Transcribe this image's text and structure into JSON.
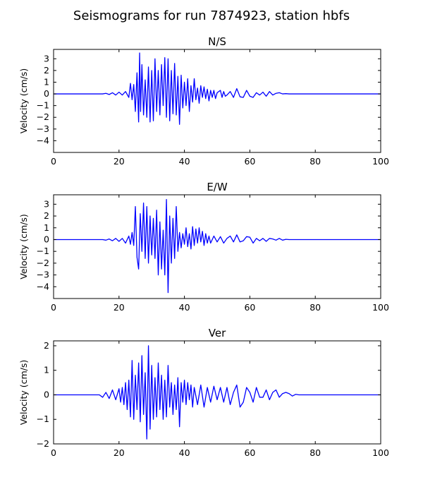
{
  "figure_title": "Seismograms for run 7874923, station hbfs",
  "chart_data": [
    {
      "type": "line",
      "title": "N/S",
      "xlabel": "",
      "ylabel": "Velocity (cm/s)",
      "xlim": [
        0,
        100
      ],
      "ylim": [
        -5,
        3.8
      ],
      "xticks": [
        0,
        20,
        40,
        60,
        80,
        100
      ],
      "yticks": [
        -4,
        -3,
        -2,
        -1,
        0,
        1,
        2,
        3
      ],
      "line_color": "#0000ff",
      "series": [
        {
          "x": [
            0,
            15,
            16,
            17,
            18,
            19,
            20,
            21,
            22,
            23,
            23.5,
            24,
            24.5,
            25,
            25.5,
            26,
            26.3,
            26.6,
            27,
            27.5,
            28,
            28.5,
            29,
            29.5,
            30,
            30.5,
            31,
            31.5,
            32,
            32.5,
            33,
            33.5,
            34,
            34.5,
            35,
            35.5,
            36,
            36.5,
            37,
            37.5,
            38,
            38.5,
            39,
            39.5,
            40,
            40.5,
            41,
            41.5,
            42,
            42.5,
            43,
            43.5,
            44,
            44.5,
            45,
            45.5,
            46,
            46.5,
            47,
            47.5,
            48,
            48.5,
            49,
            49.5,
            50,
            51,
            51.5,
            52,
            52.5,
            53,
            54,
            55,
            56,
            57,
            58,
            59,
            60,
            61,
            62,
            63,
            64,
            65,
            66,
            67,
            68,
            69,
            70,
            71,
            72,
            80,
            90,
            100
          ],
          "values": [
            0,
            0,
            0.05,
            -0.05,
            0.1,
            -0.1,
            0.15,
            -0.1,
            0.2,
            -0.3,
            0.9,
            -0.5,
            0.8,
            -1.5,
            1.8,
            -2.4,
            3.5,
            -1.5,
            2.5,
            -1.8,
            1.2,
            -2.0,
            2.3,
            -2.4,
            2.0,
            -2.3,
            3.0,
            -1.5,
            2.0,
            -1.8,
            2.5,
            -1.0,
            3.1,
            -2.0,
            3.0,
            -2.3,
            2.0,
            -1.7,
            2.6,
            -1.8,
            1.5,
            -2.6,
            1.6,
            -1.2,
            1.0,
            -1.0,
            1.3,
            -1.5,
            0.7,
            -0.7,
            1.3,
            -0.5,
            0.5,
            -0.8,
            0.7,
            -0.3,
            0.6,
            -0.4,
            0.4,
            -0.6,
            0.3,
            -0.3,
            0.3,
            -0.4,
            0.1,
            0.3,
            -0.3,
            0.2,
            -0.2,
            -0.1,
            0.2,
            -0.3,
            0.45,
            -0.25,
            -0.3,
            0.3,
            -0.2,
            -0.3,
            0.1,
            -0.1,
            0.15,
            -0.2,
            0.2,
            -0.1,
            0.05,
            0.1,
            0,
            0.02,
            0,
            0,
            0,
            0
          ]
        }
      ]
    },
    {
      "type": "line",
      "title": "E/W",
      "xlabel": "",
      "ylabel": "Velocity (cm/s)",
      "xlim": [
        0,
        100
      ],
      "ylim": [
        -5,
        3.8
      ],
      "xticks": [
        0,
        20,
        40,
        60,
        80,
        100
      ],
      "yticks": [
        -4,
        -3,
        -2,
        -1,
        0,
        1,
        2,
        3
      ],
      "line_color": "#0000ff",
      "series": [
        {
          "x": [
            0,
            15,
            16,
            17,
            18,
            19,
            20,
            21,
            22,
            23,
            23.5,
            24,
            24.5,
            25,
            25.5,
            26,
            26.5,
            27,
            27.5,
            28,
            28.5,
            29,
            29.5,
            30,
            30.5,
            31,
            31.5,
            32,
            32.5,
            33,
            33.5,
            34,
            34.5,
            35,
            35.5,
            36,
            36.5,
            37,
            37.5,
            38,
            38.5,
            39,
            39.5,
            40,
            40.5,
            41,
            41.5,
            42,
            42.5,
            43,
            43.5,
            44,
            44.5,
            45,
            45.5,
            46,
            46.5,
            47,
            47.5,
            48,
            49,
            50,
            51,
            52,
            53,
            54,
            55,
            56,
            57,
            58,
            59,
            60,
            61,
            62,
            63,
            64,
            65,
            66,
            67,
            68,
            69,
            70,
            71,
            72,
            80,
            90,
            100
          ],
          "values": [
            0,
            0,
            -0.05,
            0.05,
            -0.1,
            0.1,
            -0.15,
            0.1,
            -0.3,
            0.3,
            -0.4,
            0.6,
            -0.5,
            2.8,
            -1.5,
            -2.5,
            2.2,
            -1.0,
            3.1,
            -1.6,
            2.8,
            -2.0,
            2.0,
            -1.3,
            1.8,
            -1.6,
            2.5,
            -3.0,
            1.5,
            -2.5,
            0.8,
            -3.0,
            3.4,
            -4.5,
            2.0,
            -2.0,
            1.8,
            -1.6,
            2.8,
            -1.0,
            0.6,
            -0.7,
            0.5,
            -0.4,
            1.0,
            -0.6,
            0.5,
            -0.8,
            1.1,
            -0.5,
            0.9,
            -0.3,
            1.0,
            -0.2,
            0.7,
            -0.5,
            0.5,
            -0.3,
            0.3,
            -0.3,
            0.3,
            -0.2,
            0.25,
            -0.3,
            0.1,
            0.3,
            -0.2,
            0.4,
            -0.2,
            -0.1,
            0.25,
            0.2,
            -0.3,
            0.1,
            -0.1,
            0.1,
            -0.15,
            0.1,
            0.05,
            -0.05,
            0.1,
            -0.05,
            0.02,
            0,
            0,
            0,
            0
          ]
        }
      ]
    },
    {
      "type": "line",
      "title": "Ver",
      "xlabel": "",
      "ylabel": "Velocity (cm/s)",
      "xlim": [
        0,
        100
      ],
      "ylim": [
        -2,
        2.2
      ],
      "xticks": [
        0,
        20,
        40,
        60,
        80,
        100
      ],
      "yticks": [
        -2,
        -1,
        0,
        1,
        2
      ],
      "line_color": "#0000ff",
      "series": [
        {
          "x": [
            0,
            14,
            15,
            16,
            17,
            18,
            19,
            20,
            20.5,
            21,
            21.5,
            22,
            22.5,
            23,
            23.5,
            24,
            24.5,
            25,
            25.5,
            26,
            26.5,
            27,
            27.5,
            28,
            28.5,
            29,
            29.5,
            30,
            30.5,
            31,
            31.5,
            32,
            32.5,
            33,
            33.5,
            34,
            34.5,
            35,
            35.5,
            36,
            36.5,
            37,
            37.5,
            38,
            38.5,
            39,
            39.5,
            40,
            40.5,
            41,
            41.5,
            42,
            42.5,
            43,
            44,
            45,
            46,
            47,
            48,
            49,
            50,
            51,
            52,
            53,
            54,
            55,
            56,
            57,
            58,
            59,
            60,
            61,
            62,
            63,
            64,
            65,
            66,
            67,
            68,
            69,
            70,
            71,
            72,
            73,
            74,
            75,
            76,
            80,
            90,
            100
          ],
          "values": [
            0,
            0,
            -0.1,
            0.1,
            -0.15,
            0.2,
            -0.2,
            0.25,
            -0.3,
            0.3,
            -0.4,
            0.5,
            -0.6,
            0.6,
            -0.9,
            1.4,
            -1.0,
            0.8,
            -0.6,
            1.3,
            -1.1,
            1.6,
            -0.8,
            0.9,
            -1.8,
            2.0,
            -1.4,
            1.2,
            -1.0,
            0.7,
            -0.9,
            1.3,
            -0.6,
            0.8,
            -1.0,
            0.6,
            -0.9,
            1.2,
            -0.5,
            0.5,
            -0.8,
            0.4,
            -0.6,
            0.7,
            -1.3,
            0.5,
            -0.3,
            0.6,
            -0.4,
            0.5,
            -0.2,
            0.4,
            -0.5,
            0.3,
            -0.4,
            0.4,
            -0.5,
            0.3,
            -0.3,
            0.35,
            -0.2,
            0.3,
            -0.3,
            0.3,
            -0.4,
            0.1,
            0.4,
            -0.5,
            -0.3,
            0.3,
            0.1,
            -0.3,
            0.3,
            -0.1,
            -0.1,
            0.2,
            -0.2,
            0.1,
            0.2,
            -0.1,
            0.05,
            0.1,
            0.05,
            -0.05,
            0.02,
            0,
            0,
            0,
            0,
            0
          ]
        }
      ]
    }
  ]
}
